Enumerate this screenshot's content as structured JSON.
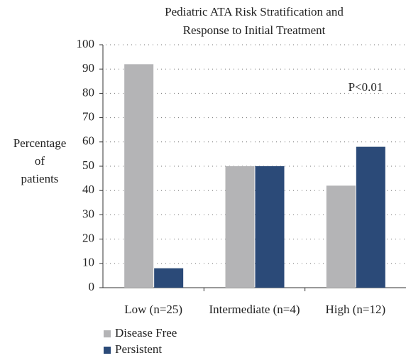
{
  "chart_data": {
    "type": "bar",
    "title": [
      "Pediatric ATA Risk Stratification and",
      "Response to Initial Treatment"
    ],
    "y_label": [
      "Percentage",
      "of",
      "patients"
    ],
    "annotation": "P<0.01",
    "categories": [
      "Low (n=25)",
      "Intermediate (n=4)",
      "High (n=12)"
    ],
    "series": [
      {
        "name": "Disease Free",
        "color": "#b4b4b6",
        "values": [
          92,
          50,
          42
        ]
      },
      {
        "name": "Persistent",
        "color": "#2b4a78",
        "values": [
          8,
          50,
          58
        ]
      }
    ],
    "ylim": [
      0,
      100
    ],
    "yticks": [
      0,
      10,
      20,
      30,
      40,
      50,
      60,
      70,
      80,
      90,
      100
    ],
    "grid": true
  }
}
